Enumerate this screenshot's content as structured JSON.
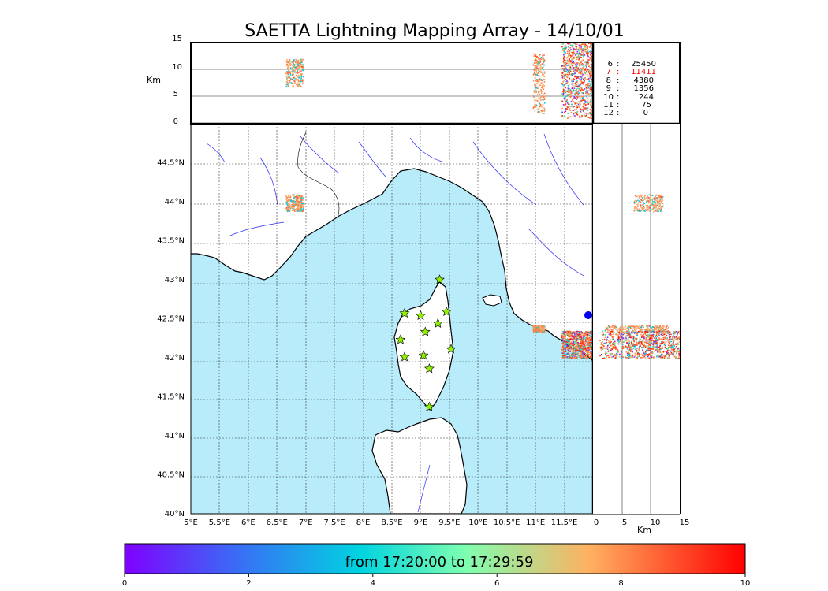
{
  "title": "SAETTA Lightning Mapping Array - 14/10/01",
  "top_panel": {
    "ylabel": "Km",
    "yticks": [
      "15",
      "10",
      "5",
      "0"
    ]
  },
  "side_panel": {
    "xlabel": "Km",
    "xticks": [
      "0",
      "5",
      "10",
      "15"
    ]
  },
  "map": {
    "lat_labels": [
      "44.5°N",
      "44°N",
      "43.5°N",
      "43°N",
      "42.5°N",
      "42°N",
      "41.5°N",
      "41°N",
      "40.5°N",
      "40°N"
    ],
    "lon_labels": [
      "5°E",
      "5.5°E",
      "6°E",
      "6.5°E",
      "7°E",
      "7.5°E",
      "8°E",
      "8.5°E",
      "9°E",
      "9.5°E",
      "10°E",
      "10.5°E",
      "11°E",
      "11.5°E"
    ],
    "sea_color": "#b8ecfb",
    "station_marker": "star",
    "station_color": "#8ff000"
  },
  "counts": [
    {
      "minpts": "6",
      "value": "25450",
      "color": "#000000"
    },
    {
      "minpts": "7",
      "value": "11411",
      "color": "#ff0000"
    },
    {
      "minpts": "8",
      "value": "4380",
      "color": "#000000"
    },
    {
      "minpts": "9",
      "value": "1356",
      "color": "#000000"
    },
    {
      "minpts": "10",
      "value": "244",
      "color": "#000000"
    },
    {
      "minpts": "11",
      "value": "75",
      "color": "#000000"
    },
    {
      "minpts": "12",
      "value": "0",
      "color": "#000000"
    }
  ],
  "colorbar": {
    "label": "from 17:20:00 to 17:29:59",
    "ticks": [
      "0",
      "2",
      "4",
      "6",
      "8",
      "10"
    ],
    "colormap": "rainbow",
    "colors": [
      "#7f00ff",
      "#3a6cf6",
      "#00d4e0",
      "#7fffb0",
      "#ffb060",
      "#ff0000"
    ]
  },
  "chart_data": {
    "type": "scatter",
    "title": "SAETTA Lightning Mapping Array - 14/10/01",
    "map_extent": {
      "lon": [
        5,
        12
      ],
      "lat": [
        40,
        45
      ]
    },
    "altitude_range_km": [
      0,
      15
    ],
    "time_range": [
      "17:20:00",
      "17:29:59"
    ],
    "stations": [
      {
        "lon": 9.33,
        "lat": 43.0
      },
      {
        "lon": 8.72,
        "lat": 42.57
      },
      {
        "lon": 9.0,
        "lat": 42.54
      },
      {
        "lon": 9.45,
        "lat": 42.59
      },
      {
        "lon": 9.3,
        "lat": 42.44
      },
      {
        "lon": 9.08,
        "lat": 42.33
      },
      {
        "lon": 8.65,
        "lat": 42.23
      },
      {
        "lon": 9.53,
        "lat": 42.11
      },
      {
        "lon": 8.72,
        "lat": 42.01
      },
      {
        "lon": 9.05,
        "lat": 42.03
      },
      {
        "lon": 9.15,
        "lat": 41.86
      },
      {
        "lon": 9.15,
        "lat": 41.37
      }
    ],
    "source_clusters": [
      {
        "lon": [
          6.65,
          6.95
        ],
        "lat": [
          43.88,
          44.1
        ],
        "alt_km": [
          7,
          12
        ],
        "time_color": "orange"
      },
      {
        "lon": [
          10.95,
          11.15
        ],
        "lat": [
          42.33,
          42.42
        ],
        "alt_km": [
          2,
          13
        ],
        "time_color": "orange"
      },
      {
        "lon": [
          11.45,
          12.0
        ],
        "lat": [
          42.0,
          42.35
        ],
        "alt_km": [
          1,
          15
        ],
        "time_color": "red-orange"
      }
    ],
    "counts_by_min_stations": [
      {
        "min": 6,
        "count": 25450
      },
      {
        "min": 7,
        "count": 11411
      },
      {
        "min": 8,
        "count": 4380
      },
      {
        "min": 9,
        "count": 1356
      },
      {
        "min": 10,
        "count": 244
      },
      {
        "min": 11,
        "count": 75
      },
      {
        "min": 12,
        "count": 0
      }
    ]
  }
}
